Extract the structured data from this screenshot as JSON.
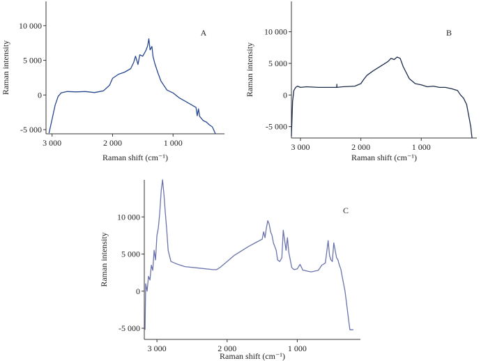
{
  "chart_data": [
    {
      "type": "line",
      "panel_label": "A",
      "xlabel": "Raman shift (cm⁻¹)",
      "ylabel": "Raman intensity",
      "x_reversed": true,
      "xlim": [
        3100,
        150
      ],
      "ylim": [
        -5600,
        13500
      ],
      "xticks": [
        {
          "v": 3000,
          "t": "3 000"
        },
        {
          "v": 2000,
          "t": "2 000"
        },
        {
          "v": 1000,
          "t": "1 000"
        }
      ],
      "yticks": [
        {
          "v": -5000,
          "t": "-5 000"
        },
        {
          "v": 0,
          "t": "0"
        },
        {
          "v": 5000,
          "t": "5 000"
        },
        {
          "v": 10000,
          "t": "10 000"
        }
      ],
      "color": "#25468f",
      "series": [
        {
          "x": [
            3050,
            3000,
            2950,
            2900,
            2850,
            2750,
            2600,
            2450,
            2300,
            2150,
            2050,
            2000,
            1900,
            1800,
            1700,
            1650,
            1620,
            1600,
            1580,
            1550,
            1500,
            1450,
            1420,
            1400,
            1380,
            1350,
            1330,
            1300,
            1250,
            1200,
            1100,
            1000,
            900,
            800,
            700,
            620,
            600,
            580,
            560,
            500,
            450,
            400,
            350,
            330,
            300
          ],
          "y": [
            -5500,
            -3500,
            -1500,
            -200,
            300,
            500,
            450,
            500,
            350,
            600,
            1400,
            2400,
            3000,
            3300,
            3800,
            4700,
            5600,
            5000,
            4400,
            5800,
            5600,
            6400,
            7100,
            8100,
            6500,
            7000,
            5500,
            4500,
            3200,
            2000,
            700,
            300,
            -400,
            -900,
            -1400,
            -1800,
            -3000,
            -2000,
            -3100,
            -3700,
            -3900,
            -4300,
            -4600,
            -5000,
            -5600
          ]
        }
      ]
    },
    {
      "type": "line",
      "panel_label": "B",
      "xlabel": "Raman shift (cm⁻¹)",
      "ylabel": "Raman intensity",
      "x_reversed": true,
      "xlim": [
        3150,
        80
      ],
      "ylim": [
        -6800,
        14800
      ],
      "xticks": [
        {
          "v": 3000,
          "t": "3 000"
        },
        {
          "v": 2000,
          "t": "2 000"
        },
        {
          "v": 1000,
          "t": "1 000"
        }
      ],
      "yticks": [
        {
          "v": -5000,
          "t": "-5 000"
        },
        {
          "v": 0,
          "t": "0"
        },
        {
          "v": 5000,
          "t": "5 000"
        },
        {
          "v": 10000,
          "t": "10 000"
        }
      ],
      "color": "#1c2a4a",
      "series": [
        {
          "x": [
            3150,
            3130,
            3110,
            3080,
            3050,
            3000,
            2900,
            2700,
            2500,
            2400,
            2398,
            2396,
            2300,
            2100,
            2000,
            1950,
            1900,
            1800,
            1700,
            1600,
            1550,
            1500,
            1450,
            1400,
            1350,
            1300,
            1200,
            1100,
            1000,
            900,
            800,
            700,
            600,
            500,
            400,
            350,
            300,
            250,
            220,
            200,
            180,
            170,
            160
          ],
          "y": [
            -6500,
            -1000,
            700,
            1200,
            1400,
            1200,
            1300,
            1200,
            1200,
            1200,
            1700,
            1200,
            1300,
            1400,
            1800,
            2500,
            3100,
            3800,
            4400,
            5000,
            5300,
            5800,
            5600,
            6000,
            5800,
            4500,
            2600,
            1800,
            1600,
            1300,
            1400,
            1200,
            1200,
            1000,
            700,
            0,
            -500,
            -1500,
            -3000,
            -4000,
            -5000,
            -6000,
            -6800
          ]
        }
      ]
    },
    {
      "type": "line",
      "panel_label": "C",
      "xlabel": "Raman shift (cm⁻¹)",
      "ylabel": "Raman intensity",
      "x_reversed": true,
      "xlim": [
        3180,
        100
      ],
      "ylim": [
        -6500,
        15000
      ],
      "xticks": [
        {
          "v": 3000,
          "t": "3 000"
        },
        {
          "v": 2000,
          "t": "2 000"
        },
        {
          "v": 1000,
          "t": "1 000"
        }
      ],
      "yticks": [
        {
          "v": -5000,
          "t": "-5 000"
        },
        {
          "v": 0,
          "t": "0"
        },
        {
          "v": 5000,
          "t": "5 000"
        },
        {
          "v": 10000,
          "t": "10 000"
        }
      ],
      "color": "#6a72ad",
      "series": [
        {
          "x": [
            3170,
            3160,
            3140,
            3120,
            3100,
            3080,
            3060,
            3040,
            3020,
            3000,
            2980,
            2960,
            2940,
            2920,
            2900,
            2880,
            2860,
            2840,
            2800,
            2700,
            2600,
            2400,
            2200,
            2150,
            2100,
            2000,
            1900,
            1800,
            1700,
            1600,
            1500,
            1480,
            1460,
            1440,
            1420,
            1400,
            1380,
            1360,
            1340,
            1300,
            1280,
            1250,
            1220,
            1200,
            1160,
            1140,
            1120,
            1100,
            1080,
            1060,
            1040,
            1000,
            960,
            940,
            920,
            900,
            860,
            800,
            700,
            650,
            600,
            560,
            540,
            520,
            500,
            480,
            460,
            440,
            420,
            400,
            380,
            360,
            320,
            300,
            280,
            260,
            250,
            240,
            200
          ],
          "y": [
            -5200,
            1000,
            0,
            2000,
            1500,
            3500,
            2800,
            5500,
            4200,
            7500,
            8500,
            10500,
            13500,
            15000,
            13000,
            10500,
            8200,
            5500,
            4000,
            3600,
            3300,
            3100,
            2900,
            2900,
            3200,
            4000,
            4800,
            5400,
            6000,
            6500,
            7000,
            8000,
            7200,
            8500,
            9500,
            9000,
            8000,
            7500,
            6500,
            5500,
            4200,
            4000,
            4500,
            8200,
            5500,
            7200,
            5200,
            4200,
            3200,
            3000,
            2900,
            3000,
            3600,
            3200,
            2800,
            2800,
            2700,
            2600,
            2800,
            3500,
            3800,
            6800,
            4800,
            4200,
            4000,
            6500,
            5500,
            4500,
            4200,
            3500,
            3000,
            2000,
            0,
            -1500,
            -3000,
            -4500,
            -5200,
            -5200,
            -5200
          ]
        }
      ]
    }
  ]
}
